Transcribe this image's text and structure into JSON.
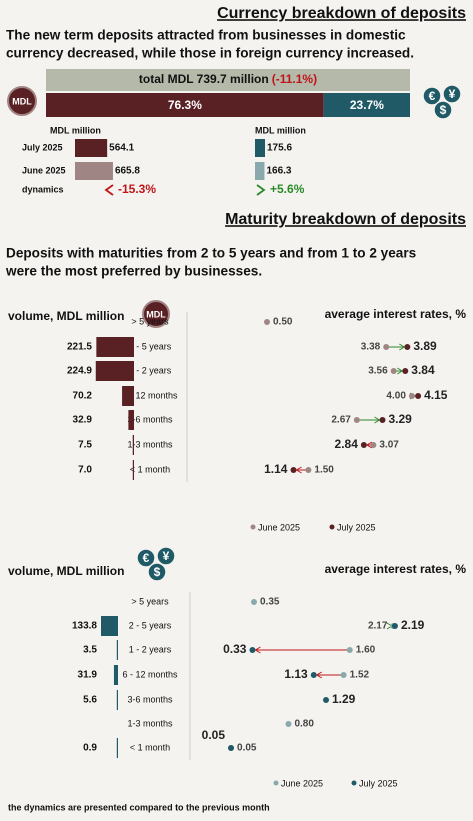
{
  "currency": {
    "title": "Currency breakdown of deposits",
    "intro": [
      "The new term deposits attracted from businesses in domestic",
      "currency decreased, while those in foreign currency increased."
    ],
    "mdl_icon": "MDL",
    "fx_icons": [
      "€",
      "¥",
      "$"
    ],
    "total_label": "total MDL 739.7 million",
    "total_change": "(-11.1%)",
    "shares": [
      {
        "value": 76.3,
        "label": "76.3%"
      },
      {
        "value": 23.7,
        "label": "23.7%"
      }
    ],
    "mdl_unit": "MDL million",
    "fx_unit": "MDL million",
    "periods": [
      "July 2025",
      "June 2025"
    ],
    "dynamics_label": "dynamics",
    "mdl_values": [
      564.1,
      665.8
    ],
    "mdl_dynamics": "-15.3%",
    "fx_values": [
      175.6,
      166.3
    ],
    "fx_dynamics": "+5.6%"
  },
  "maturity": {
    "title": "Maturity breakdown of deposits",
    "intro": [
      "Deposits with maturities from 2 to 5 years and from 1 to 2 years",
      "were the most preferred by businesses."
    ],
    "categories": [
      "> 5 years",
      "2 - 5 years",
      "1 - 2 years",
      "6 - 12 months",
      "3-6 months",
      "1-3 months",
      "< 1 month"
    ],
    "mdl": {
      "volume_label": "volume, MDL million",
      "rates_label": "average interest rates, %",
      "volumes": [
        null,
        221.5,
        224.9,
        70.2,
        32.9,
        7.5,
        7.0
      ],
      "volume_labels": [
        null,
        "221.5",
        "224.9",
        "70.2",
        "32.9",
        "7.5",
        "7.0"
      ],
      "series": [
        {
          "name": "June 2025",
          "color": "#a08585",
          "values": [
            0.5,
            3.38,
            3.56,
            4.0,
            2.67,
            3.07,
            1.5
          ],
          "value_labels": [
            "0.50",
            "3.38",
            "3.56",
            "4.00",
            "2.67",
            "3.07",
            "1.50"
          ]
        },
        {
          "name": "July 2025",
          "color": "#5a2125",
          "values": [
            null,
            3.89,
            3.84,
            4.15,
            3.29,
            2.84,
            1.14
          ],
          "value_labels": [
            null,
            "3.89",
            "3.84",
            "4.15",
            "3.29",
            "2.84",
            "1.14"
          ]
        }
      ]
    },
    "fx": {
      "volume_label": "volume, MDL million",
      "rates_label": "average interest rates, %",
      "volumes": [
        null,
        133.8,
        3.5,
        31.9,
        5.6,
        null,
        0.9
      ],
      "series": [
        {
          "name": "June 2025",
          "color": "#8aa9ad",
          "values": [
            0.35,
            2.17,
            1.6,
            1.52,
            null,
            0.8,
            0.05
          ],
          "value_labels": [
            "0.35",
            "2.17",
            "1.60",
            "1.52",
            null,
            "0.80",
            "0.05"
          ]
        },
        {
          "name": "July 2025",
          "color": "#1f5a66",
          "values": [
            null,
            2.19,
            0.33,
            1.13,
            1.29,
            null,
            0.05
          ],
          "value_labels": [
            null,
            "2.19",
            "0.33",
            "1.13",
            "1.29",
            null,
            "0.05"
          ]
        }
      ]
    },
    "footnote": "the dynamics are presented compared to the previous month"
  }
}
